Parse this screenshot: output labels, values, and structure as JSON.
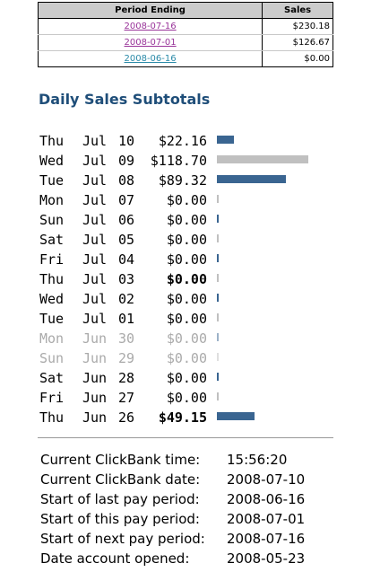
{
  "period_table": {
    "headers": [
      "Period Ending",
      "Sales"
    ],
    "rows": [
      {
        "period": "2008-07-16",
        "sales": "$230.18",
        "link_color": "#993399"
      },
      {
        "period": "2008-07-01",
        "sales": "$126.67",
        "link_color": "#993399"
      },
      {
        "period": "2008-06-16",
        "sales": "$0.00",
        "link_color": "#2a8aa8"
      }
    ]
  },
  "section_title": "Daily Sales Subtotals",
  "daily": {
    "max_value": 118.7,
    "rows": [
      {
        "dow": "Thu",
        "mon": "Jul",
        "day": "10",
        "amount": "$22.16",
        "value": 22.16,
        "bold": false,
        "muted": false,
        "bar_color": "#3a6591"
      },
      {
        "dow": "Wed",
        "mon": "Jul",
        "day": "09",
        "amount": "$118.70",
        "value": 118.7,
        "bold": false,
        "muted": false,
        "bar_color": "#c0c0c0"
      },
      {
        "dow": "Tue",
        "mon": "Jul",
        "day": "08",
        "amount": "$89.32",
        "value": 89.32,
        "bold": false,
        "muted": false,
        "bar_color": "#3a6591"
      },
      {
        "dow": "Mon",
        "mon": "Jul",
        "day": "07",
        "amount": "$0.00",
        "value": 0,
        "bold": false,
        "muted": false,
        "bar_color": "#c0c0c0"
      },
      {
        "dow": "Sun",
        "mon": "Jul",
        "day": "06",
        "amount": "$0.00",
        "value": 0,
        "bold": false,
        "muted": false,
        "bar_color": "#3a6591"
      },
      {
        "dow": "Sat",
        "mon": "Jul",
        "day": "05",
        "amount": "$0.00",
        "value": 0,
        "bold": false,
        "muted": false,
        "bar_color": "#c0c0c0"
      },
      {
        "dow": "Fri",
        "mon": "Jul",
        "day": "04",
        "amount": "$0.00",
        "value": 0,
        "bold": false,
        "muted": false,
        "bar_color": "#3a6591"
      },
      {
        "dow": "Thu",
        "mon": "Jul",
        "day": "03",
        "amount": "$0.00",
        "value": 0,
        "bold": true,
        "muted": false,
        "bar_color": "#c0c0c0"
      },
      {
        "dow": "Wed",
        "mon": "Jul",
        "day": "02",
        "amount": "$0.00",
        "value": 0,
        "bold": false,
        "muted": false,
        "bar_color": "#3a6591"
      },
      {
        "dow": "Tue",
        "mon": "Jul",
        "day": "01",
        "amount": "$0.00",
        "value": 0,
        "bold": false,
        "muted": false,
        "bar_color": "#c0c0c0"
      },
      {
        "dow": "Mon",
        "mon": "Jun",
        "day": "30",
        "amount": "$0.00",
        "value": 0,
        "bold": false,
        "muted": true,
        "bar_color": "#3a6591"
      },
      {
        "dow": "Sun",
        "mon": "Jun",
        "day": "29",
        "amount": "$0.00",
        "value": 0,
        "bold": false,
        "muted": true,
        "bar_color": "#c0c0c0"
      },
      {
        "dow": "Sat",
        "mon": "Jun",
        "day": "28",
        "amount": "$0.00",
        "value": 0,
        "bold": false,
        "muted": false,
        "bar_color": "#3a6591"
      },
      {
        "dow": "Fri",
        "mon": "Jun",
        "day": "27",
        "amount": "$0.00",
        "value": 0,
        "bold": false,
        "muted": false,
        "bar_color": "#c0c0c0"
      },
      {
        "dow": "Thu",
        "mon": "Jun",
        "day": "26",
        "amount": "$49.15",
        "value": 49.15,
        "bold": true,
        "muted": false,
        "bar_color": "#3a6591"
      }
    ]
  },
  "info": [
    {
      "label": "Current ClickBank time:",
      "value": "15:56:20"
    },
    {
      "label": "Current ClickBank date:",
      "value": "2008-07-10"
    },
    {
      "label": "Start of last pay period:",
      "value": "2008-06-16"
    },
    {
      "label": "Start of this pay period:",
      "value": "2008-07-01"
    },
    {
      "label": "Start of next pay period:",
      "value": "2008-07-16"
    },
    {
      "label": "Date account opened:",
      "value": "2008-05-23"
    }
  ]
}
